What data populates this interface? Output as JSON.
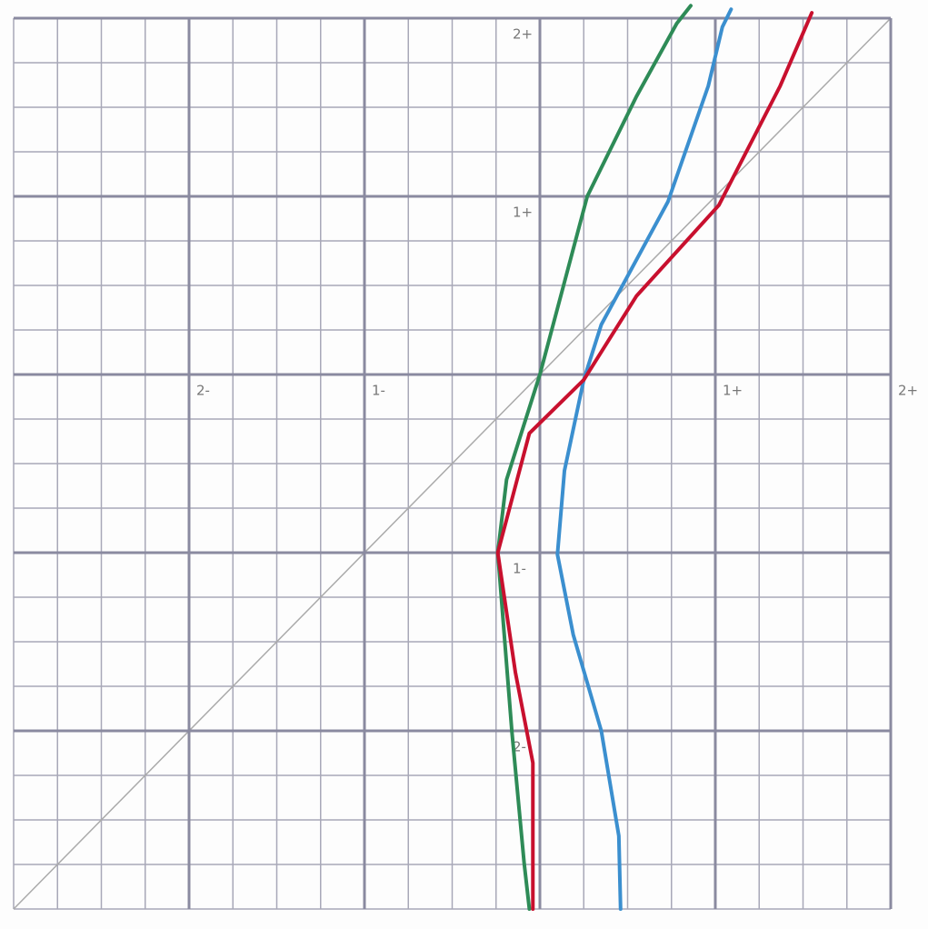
{
  "chart_data": {
    "type": "line",
    "xlim": [
      -3,
      2
    ],
    "ylim": [
      -3,
      2
    ],
    "xticks": [
      {
        "value": -2,
        "label": "2-"
      },
      {
        "value": -1,
        "label": "1-"
      },
      {
        "value": 1,
        "label": "1+"
      },
      {
        "value": 2,
        "label": "2+"
      }
    ],
    "yticks": [
      {
        "value": 2,
        "label": "2+"
      },
      {
        "value": 1,
        "label": "1+"
      },
      {
        "value": -1,
        "label": "1-"
      },
      {
        "value": -2,
        "label": "2-"
      }
    ],
    "grid": true,
    "series": [
      {
        "color": "#2e8b57",
        "x": [
          0.86,
          0.78,
          0.55,
          0.27,
          0,
          -0.19,
          -0.24,
          -0.16,
          -0.09,
          -0.06
        ],
        "values": [
          2.07,
          1.97,
          1.56,
          1.0,
          0,
          -0.59,
          -1.0,
          -2.0,
          -2.74,
          -3.0
        ]
      },
      {
        "color": "#3b8fcf",
        "x": [
          1.09,
          1.04,
          0.96,
          0.73,
          0.35,
          0.25,
          0.14,
          0.1,
          0.19,
          0.35,
          0.45,
          0.46
        ],
        "values": [
          2.05,
          1.95,
          1.62,
          0.97,
          0.28,
          -0.03,
          -0.54,
          -1.01,
          -1.46,
          -2.0,
          -2.59,
          -3.0
        ]
      },
      {
        "color": "#c8102e",
        "x": [
          1.55,
          1.37,
          1.02,
          0.55,
          0.25,
          -0.06,
          -0.24,
          -0.14,
          -0.04,
          -0.04
        ],
        "values": [
          2.03,
          1.62,
          0.95,
          0.44,
          -0.03,
          -0.33,
          -1.0,
          -1.67,
          -2.18,
          -3.0
        ]
      }
    ]
  }
}
